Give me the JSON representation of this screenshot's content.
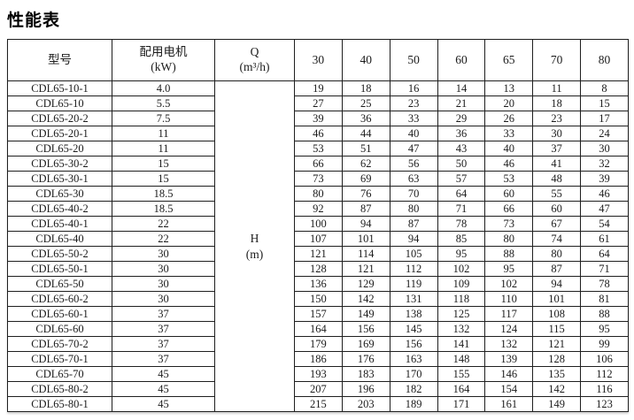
{
  "title": "性能表",
  "table": {
    "headers": {
      "model": "型号",
      "motor": "配用电机\n(kW)",
      "flow": "Q\n(m³/h)"
    },
    "flow_columns": [
      "30",
      "40",
      "50",
      "60",
      "65",
      "70",
      "80"
    ],
    "head_label": "H\n(m)",
    "rows": [
      {
        "model": "CDL65-10-1",
        "power": "4.0",
        "values": [
          "19",
          "18",
          "16",
          "14",
          "13",
          "11",
          "8"
        ]
      },
      {
        "model": "CDL65-10",
        "power": "5.5",
        "values": [
          "27",
          "25",
          "23",
          "21",
          "20",
          "18",
          "15"
        ]
      },
      {
        "model": "CDL65-20-2",
        "power": "7.5",
        "values": [
          "39",
          "36",
          "33",
          "29",
          "26",
          "23",
          "17"
        ]
      },
      {
        "model": "CDL65-20-1",
        "power": "11",
        "values": [
          "46",
          "44",
          "40",
          "36",
          "33",
          "30",
          "24"
        ]
      },
      {
        "model": "CDL65-20",
        "power": "11",
        "values": [
          "53",
          "51",
          "47",
          "43",
          "40",
          "37",
          "30"
        ]
      },
      {
        "model": "CDL65-30-2",
        "power": "15",
        "values": [
          "66",
          "62",
          "56",
          "50",
          "46",
          "41",
          "32"
        ]
      },
      {
        "model": "CDL65-30-1",
        "power": "15",
        "values": [
          "73",
          "69",
          "63",
          "57",
          "53",
          "48",
          "39"
        ]
      },
      {
        "model": "CDL65-30",
        "power": "18.5",
        "values": [
          "80",
          "76",
          "70",
          "64",
          "60",
          "55",
          "46"
        ]
      },
      {
        "model": "CDL65-40-2",
        "power": "18.5",
        "values": [
          "92",
          "87",
          "80",
          "71",
          "66",
          "60",
          "47"
        ]
      },
      {
        "model": "CDL65-40-1",
        "power": "22",
        "values": [
          "100",
          "94",
          "87",
          "78",
          "73",
          "67",
          "54"
        ]
      },
      {
        "model": "CDL65-40",
        "power": "22",
        "values": [
          "107",
          "101",
          "94",
          "85",
          "80",
          "74",
          "61"
        ]
      },
      {
        "model": "CDL65-50-2",
        "power": "30",
        "values": [
          "121",
          "114",
          "105",
          "95",
          "88",
          "80",
          "64"
        ]
      },
      {
        "model": "CDL65-50-1",
        "power": "30",
        "values": [
          "128",
          "121",
          "112",
          "102",
          "95",
          "87",
          "71"
        ]
      },
      {
        "model": "CDL65-50",
        "power": "30",
        "values": [
          "136",
          "129",
          "119",
          "109",
          "102",
          "94",
          "78"
        ]
      },
      {
        "model": "CDL65-60-2",
        "power": "30",
        "values": [
          "150",
          "142",
          "131",
          "118",
          "110",
          "101",
          "81"
        ]
      },
      {
        "model": "CDL65-60-1",
        "power": "37",
        "values": [
          "157",
          "149",
          "138",
          "125",
          "117",
          "108",
          "88"
        ]
      },
      {
        "model": "CDL65-60",
        "power": "37",
        "values": [
          "164",
          "156",
          "145",
          "132",
          "124",
          "115",
          "95"
        ]
      },
      {
        "model": "CDL65-70-2",
        "power": "37",
        "values": [
          "179",
          "169",
          "156",
          "141",
          "132",
          "121",
          "99"
        ]
      },
      {
        "model": "CDL65-70-1",
        "power": "37",
        "values": [
          "186",
          "176",
          "163",
          "148",
          "139",
          "128",
          "106"
        ]
      },
      {
        "model": "CDL65-70",
        "power": "45",
        "values": [
          "193",
          "183",
          "170",
          "155",
          "146",
          "135",
          "112"
        ]
      },
      {
        "model": "CDL65-80-2",
        "power": "45",
        "values": [
          "207",
          "196",
          "182",
          "164",
          "154",
          "142",
          "116"
        ]
      },
      {
        "model": "CDL65-80-1",
        "power": "45",
        "values": [
          "215",
          "203",
          "189",
          "171",
          "161",
          "149",
          "123"
        ]
      }
    ]
  }
}
